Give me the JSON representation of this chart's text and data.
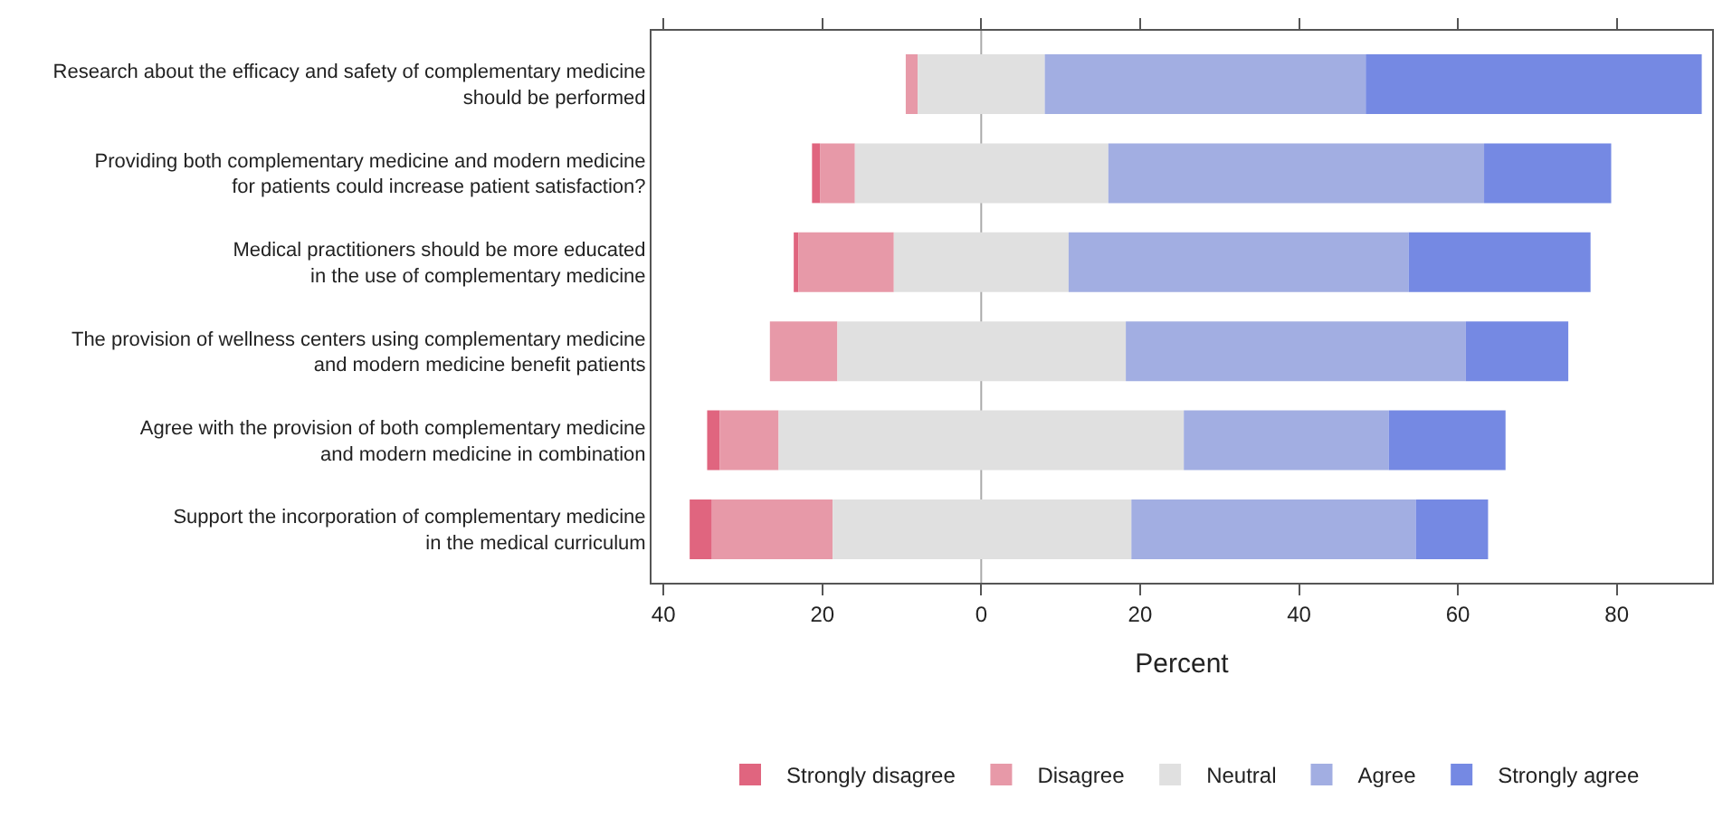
{
  "chart_data": {
    "type": "bar",
    "orientation": "horizontal",
    "xlabel": "Percent",
    "categories": [
      "Research about the efficacy and safety of complementary medicine\nshould be performed",
      "Providing both complementary medicine and modern medicine\nfor patients could increase patient satisfaction?",
      "Medical practitioners should be more educated\nin the use of complementary medicine",
      "The provision of wellness centers using complementary medicine\nand modern medicine benefit patients",
      "Agree with the provision of both complementary medicine\nand modern medicine in combination",
      "Support the incorporation of complementary medicine\nin the medical curriculum"
    ],
    "series": [
      {
        "name": "Strongly disagree",
        "color": "#e0657f",
        "values": [
          null,
          1.0,
          0.6,
          null,
          1.6,
          2.8
        ],
        "base": [
          null,
          -21.3,
          -23.6,
          null,
          -34.5,
          -36.7
        ]
      },
      {
        "name": "Disagree",
        "color": "#e799a8",
        "values": [
          1.5,
          4.4,
          12.0,
          8.5,
          7.4,
          15.2
        ],
        "base": [
          -9.5,
          -20.3,
          -23.0,
          -26.6,
          -32.9,
          -33.9
        ]
      },
      {
        "name": "Neutral",
        "color": "#e0e0e0",
        "values": [
          16.0,
          31.9,
          22.0,
          36.3,
          51.0,
          37.6
        ],
        "base": [
          -8.0,
          -15.9,
          -11.0,
          -18.1,
          -25.5,
          -18.7
        ]
      },
      {
        "name": "Agree",
        "color": "#a2aee2",
        "values": [
          40.4,
          47.3,
          42.8,
          42.8,
          25.8,
          35.8
        ],
        "base": [
          8.0,
          16.0,
          11.0,
          18.2,
          25.5,
          18.9
        ]
      },
      {
        "name": "Strongly agree",
        "color": "#7589e3",
        "values": [
          42.3,
          16.0,
          22.9,
          12.9,
          14.7,
          9.1
        ],
        "base": [
          48.4,
          63.3,
          53.8,
          61.0,
          51.3,
          54.7
        ]
      }
    ],
    "xlim": [
      -41.5,
      92
    ],
    "xticks": [
      {
        "value": -40,
        "label": "40"
      },
      {
        "value": -20,
        "label": "20"
      },
      0,
      20,
      40,
      60,
      80
    ],
    "ref_lines": [
      {
        "axis": "x",
        "value": 0,
        "color": "#aaaaaa"
      }
    ],
    "grid": false,
    "legend": "bottom"
  }
}
